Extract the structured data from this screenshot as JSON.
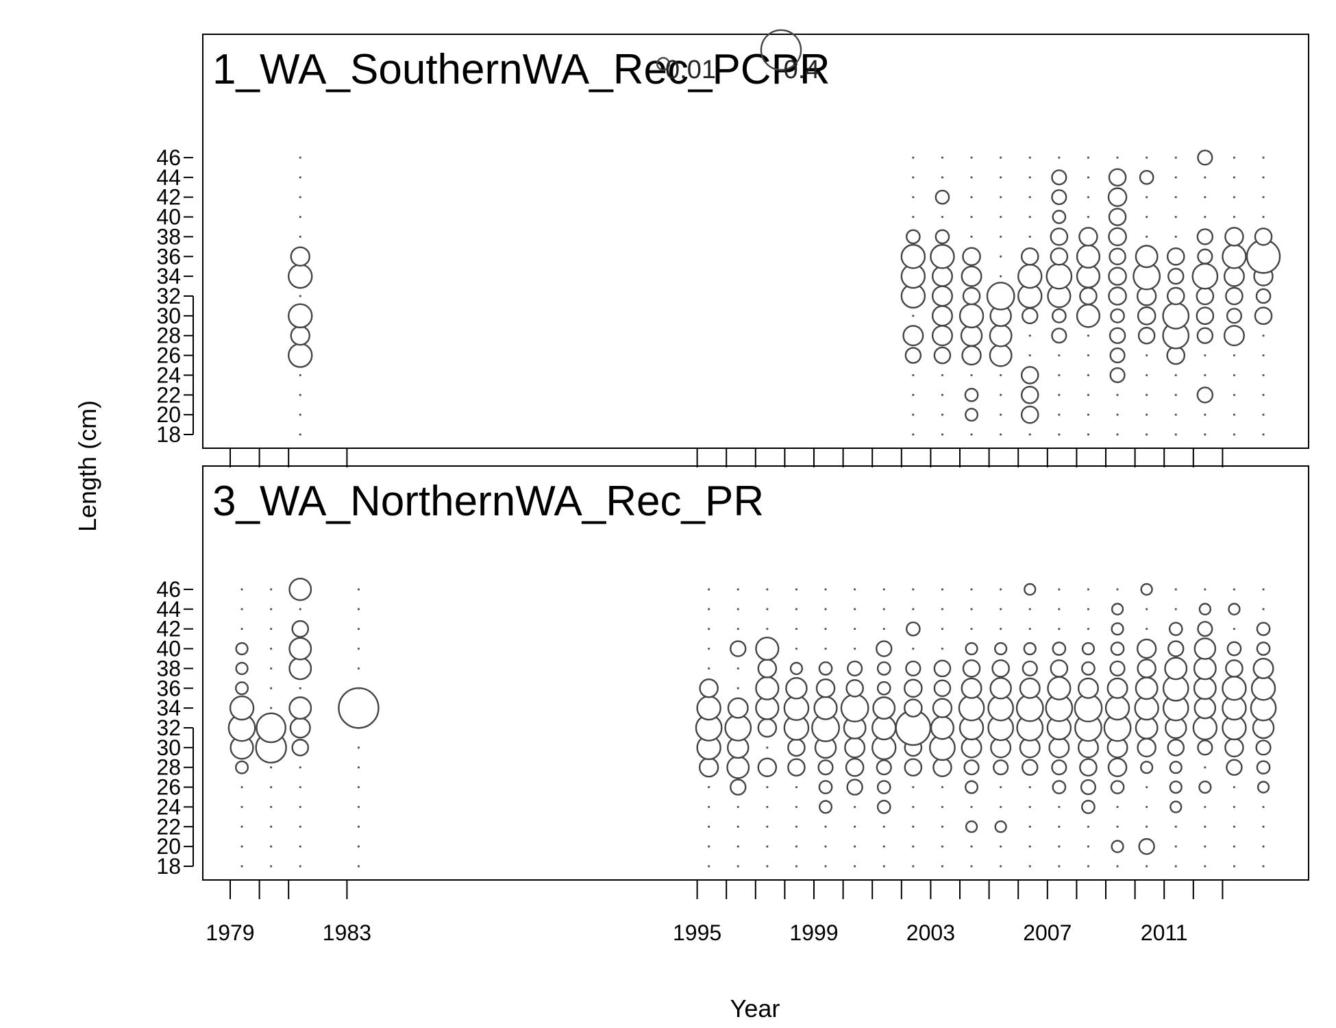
{
  "chart_data": {
    "type": "bubble",
    "xlabel": "Year",
    "ylabel": "Length (cm)",
    "x_tick_labels": [
      1979,
      1983,
      1995,
      1999,
      2003,
      2007,
      2011
    ],
    "y_tick_labels": [
      18,
      20,
      22,
      24,
      26,
      28,
      30,
      32,
      34,
      36,
      38,
      40,
      42,
      44,
      46
    ],
    "x_minor_ticks": [
      1979,
      1980,
      1981,
      1983,
      1995,
      1996,
      1997,
      1998,
      1999,
      2000,
      2001,
      2002,
      2003,
      2004,
      2005,
      2006,
      2007,
      2008,
      2009,
      2010,
      2011,
      2012,
      2013
    ],
    "xlim": [
      1978,
      2015.9
    ],
    "ylim": [
      17,
      58
    ],
    "legend": {
      "values": [
        "0.01",
        "0.4"
      ],
      "sizes": [
        0.01,
        0.4
      ]
    },
    "panels": [
      {
        "title": "1_WA_SouthernWA_Rec_PCPR",
        "years": [
          {
            "year": 1981.4,
            "values": {
              "18": 0,
              "20": 0,
              "22": 0,
              "24": 0,
              "26": 0.1,
              "28": 0.05,
              "30": 0.1,
              "32": 0,
              "34": 0.1,
              "36": 0.05,
              "38": 0,
              "40": 0,
              "42": 0,
              "44": 0,
              "46": 0
            }
          },
          {
            "year": 2002.4,
            "values": {
              "18": 0,
              "20": 0,
              "22": 0,
              "24": 0,
              "26": 0.025,
              "28": 0.06,
              "30": 0,
              "32": 0.1,
              "34": 0.1,
              "36": 0.1,
              "38": 0.015,
              "40": 0,
              "42": 0,
              "44": 0,
              "46": 0
            }
          },
          {
            "year": 2003.4,
            "values": {
              "18": 0,
              "20": 0,
              "22": 0,
              "24": 0,
              "26": 0.03,
              "28": 0.06,
              "30": 0.06,
              "32": 0.06,
              "34": 0.06,
              "36": 0.1,
              "38": 0.015,
              "40": 0,
              "42": 0.015,
              "44": 0,
              "46": 0
            }
          },
          {
            "year": 2004.4,
            "values": {
              "18": 0,
              "20": 0.01,
              "22": 0.012,
              "24": 0,
              "26": 0.05,
              "28": 0.07,
              "30": 0.1,
              "32": 0.035,
              "34": 0.06,
              "36": 0.04,
              "38": 0,
              "40": 0,
              "42": 0,
              "44": 0,
              "46": 0
            }
          },
          {
            "year": 2005.4,
            "values": {
              "18": 0,
              "20": 0,
              "22": 0,
              "24": 0,
              "26": 0.08,
              "28": 0.08,
              "30": 0.07,
              "32": 0.15,
              "34": 0,
              "36": 0,
              "38": 0,
              "40": 0,
              "42": 0,
              "44": 0,
              "46": 0
            }
          },
          {
            "year": 2006.4,
            "values": {
              "18": 0,
              "20": 0.035,
              "22": 0.035,
              "24": 0.035,
              "26": 0,
              "28": 0,
              "30": 0.025,
              "32": 0.1,
              "34": 0.1,
              "36": 0.035,
              "38": 0,
              "40": 0,
              "42": 0,
              "44": 0,
              "46": 0
            }
          },
          {
            "year": 2007.4,
            "values": {
              "18": 0,
              "20": 0,
              "22": 0,
              "24": 0,
              "26": 0,
              "28": 0.02,
              "30": 0.015,
              "32": 0.09,
              "34": 0.12,
              "36": 0.035,
              "38": 0.035,
              "40": 0.012,
              "42": 0.02,
              "44": 0.02,
              "46": 0
            }
          },
          {
            "year": 2008.4,
            "values": {
              "18": 0,
              "20": 0,
              "22": 0,
              "24": 0,
              "26": 0,
              "28": 0,
              "30": 0.09,
              "32": 0.035,
              "34": 0.09,
              "36": 0.09,
              "38": 0.045,
              "40": 0,
              "42": 0,
              "44": 0,
              "46": 0
            }
          },
          {
            "year": 2009.4,
            "values": {
              "18": 0,
              "20": 0,
              "22": 0,
              "24": 0.02,
              "26": 0.02,
              "28": 0.025,
              "30": 0.015,
              "32": 0.04,
              "34": 0.04,
              "36": 0.03,
              "38": 0.04,
              "40": 0.035,
              "42": 0.045,
              "44": 0.035,
              "46": 0
            }
          },
          {
            "year": 2010.4,
            "values": {
              "18": 0,
              "20": 0,
              "22": 0,
              "24": 0,
              "26": 0,
              "28": 0.03,
              "30": 0.04,
              "32": 0.05,
              "34": 0.14,
              "36": 0.08,
              "38": 0,
              "40": 0,
              "42": 0,
              "44": 0.015,
              "46": 0
            }
          },
          {
            "year": 2011.4,
            "values": {
              "18": 0,
              "20": 0,
              "22": 0,
              "24": 0,
              "26": 0.04,
              "28": 0.13,
              "30": 0.13,
              "32": 0.035,
              "34": 0.025,
              "36": 0.035,
              "38": 0,
              "40": 0,
              "42": 0,
              "44": 0,
              "46": 0
            }
          },
          {
            "year": 2012.4,
            "values": {
              "18": 0,
              "20": 0,
              "22": 0.025,
              "24": 0,
              "26": 0,
              "28": 0.025,
              "30": 0.035,
              "32": 0.035,
              "34": 0.12,
              "36": 0.02,
              "38": 0.025,
              "40": 0,
              "42": 0,
              "44": 0,
              "46": 0.02
            }
          },
          {
            "year": 2013.4,
            "values": {
              "18": 0,
              "20": 0,
              "22": 0,
              "24": 0,
              "26": 0,
              "28": 0.06,
              "30": 0.02,
              "32": 0.035,
              "34": 0.06,
              "36": 0.1,
              "38": 0.045,
              "40": 0,
              "42": 0,
              "44": 0,
              "46": 0
            }
          },
          {
            "year": 2014.4,
            "values": {
              "18": 0,
              "20": 0,
              "22": 0,
              "24": 0,
              "26": 0,
              "28": 0,
              "30": 0.035,
              "32": 0.018,
              "34": 0.05,
              "36": 0.25,
              "38": 0.035,
              "40": 0,
              "42": 0,
              "44": 0,
              "46": 0
            }
          }
        ]
      },
      {
        "title": "3_WA_NorthernWA_Rec_PR",
        "years": [
          {
            "year": 1979.4,
            "values": {
              "18": 0,
              "20": 0,
              "22": 0,
              "24": 0,
              "26": 0,
              "28": 0.01,
              "30": 0.09,
              "32": 0.14,
              "34": 0.1,
              "36": 0.01,
              "38": 0.008,
              "40": 0.008,
              "42": 0,
              "44": 0,
              "46": 0
            }
          },
          {
            "year": 1980.4,
            "values": {
              "18": 0,
              "20": 0,
              "22": 0,
              "24": 0,
              "26": 0,
              "28": 0,
              "30": 0.2,
              "32": 0.18,
              "34": 0,
              "36": 0,
              "38": 0,
              "40": 0,
              "42": 0,
              "44": 0,
              "46": 0
            }
          },
          {
            "year": 1981.4,
            "values": {
              "18": 0,
              "20": 0,
              "22": 0,
              "24": 0,
              "26": 0,
              "28": 0,
              "30": 0.03,
              "32": 0.06,
              "34": 0.08,
              "36": 0,
              "38": 0.08,
              "40": 0.08,
              "42": 0.03,
              "44": 0,
              "46": 0.08
            }
          },
          {
            "year": 1983.4,
            "values": {
              "18": 0,
              "20": 0,
              "22": 0,
              "24": 0,
              "26": 0,
              "28": 0,
              "30": 0,
              "32": 0,
              "34": 0.4,
              "36": 0,
              "38": 0,
              "40": 0,
              "42": 0,
              "44": 0,
              "46": 0
            }
          },
          {
            "year": 1995.4,
            "values": {
              "18": 0,
              "20": 0,
              "22": 0,
              "24": 0,
              "26": 0,
              "28": 0.05,
              "30": 0.1,
              "32": 0.13,
              "34": 0.1,
              "36": 0.045,
              "38": 0,
              "40": 0,
              "42": 0,
              "44": 0,
              "46": 0
            }
          },
          {
            "year": 1996.4,
            "values": {
              "18": 0,
              "20": 0,
              "22": 0,
              "24": 0,
              "26": 0.025,
              "28": 0.08,
              "30": 0.07,
              "32": 0.13,
              "34": 0.06,
              "36": 0,
              "38": 0,
              "40": 0.025,
              "42": 0,
              "44": 0,
              "46": 0
            }
          },
          {
            "year": 1997.4,
            "values": {
              "18": 0,
              "20": 0,
              "22": 0,
              "24": 0,
              "26": 0,
              "28": 0.045,
              "30": 0,
              "32": 0.045,
              "34": 0.09,
              "36": 0.09,
              "38": 0.045,
              "40": 0.09,
              "42": 0,
              "44": 0,
              "46": 0
            }
          },
          {
            "year": 1998.4,
            "values": {
              "18": 0,
              "20": 0,
              "22": 0,
              "24": 0,
              "26": 0,
              "28": 0.035,
              "30": 0.035,
              "32": 0.11,
              "34": 0.11,
              "36": 0.07,
              "38": 0.008,
              "40": 0,
              "42": 0,
              "44": 0,
              "46": 0
            }
          },
          {
            "year": 1999.4,
            "values": {
              "18": 0,
              "20": 0,
              "22": 0,
              "24": 0.01,
              "26": 0.012,
              "28": 0.02,
              "30": 0.07,
              "32": 0.15,
              "34": 0.09,
              "36": 0.045,
              "38": 0.012,
              "40": 0,
              "42": 0,
              "44": 0,
              "46": 0
            }
          },
          {
            "year": 2000.4,
            "values": {
              "18": 0,
              "20": 0,
              "22": 0,
              "24": 0,
              "26": 0.025,
              "28": 0.04,
              "30": 0.06,
              "32": 0.08,
              "34": 0.15,
              "36": 0.035,
              "38": 0.02,
              "40": 0,
              "42": 0,
              "44": 0,
              "46": 0
            }
          },
          {
            "year": 2001.4,
            "values": {
              "18": 0,
              "20": 0,
              "22": 0,
              "24": 0.012,
              "26": 0.012,
              "28": 0.02,
              "30": 0.1,
              "32": 0.1,
              "34": 0.08,
              "36": 0.012,
              "38": 0.012,
              "40": 0.025,
              "42": 0,
              "44": 0,
              "46": 0
            }
          },
          {
            "year": 2002.4,
            "values": {
              "18": 0,
              "20": 0,
              "22": 0,
              "24": 0,
              "26": 0,
              "28": 0.035,
              "30": 0.035,
              "32": 0.28,
              "34": 0.04,
              "36": 0.04,
              "38": 0.02,
              "40": 0,
              "42": 0.015,
              "44": 0,
              "46": 0
            }
          },
          {
            "year": 2003.4,
            "values": {
              "18": 0,
              "20": 0,
              "22": 0,
              "24": 0,
              "26": 0,
              "28": 0.045,
              "30": 0.12,
              "32": 0.09,
              "34": 0.05,
              "36": 0.03,
              "38": 0.03,
              "40": 0,
              "42": 0,
              "44": 0,
              "46": 0
            }
          },
          {
            "year": 2004.4,
            "values": {
              "18": 0,
              "20": 0,
              "22": 0.006,
              "24": 0,
              "26": 0.01,
              "28": 0.02,
              "30": 0.06,
              "32": 0.1,
              "34": 0.12,
              "36": 0.06,
              "38": 0.035,
              "40": 0.008,
              "42": 0,
              "44": 0,
              "46": 0
            }
          },
          {
            "year": 2005.4,
            "values": {
              "18": 0,
              "20": 0,
              "22": 0.006,
              "24": 0,
              "26": 0,
              "28": 0.02,
              "30": 0.06,
              "32": 0.12,
              "34": 0.12,
              "36": 0.07,
              "38": 0.035,
              "40": 0.008,
              "42": 0,
              "44": 0,
              "46": 0
            }
          },
          {
            "year": 2006.4,
            "values": {
              "18": 0,
              "20": 0,
              "22": 0,
              "24": 0,
              "26": 0,
              "28": 0.025,
              "30": 0.06,
              "32": 0.13,
              "34": 0.14,
              "36": 0.06,
              "38": 0.02,
              "40": 0.008,
              "42": 0,
              "44": 0,
              "46": 0.006
            }
          },
          {
            "year": 2007.4,
            "values": {
              "18": 0,
              "20": 0,
              "22": 0,
              "24": 0,
              "26": 0.012,
              "28": 0.02,
              "30": 0.06,
              "32": 0.1,
              "34": 0.14,
              "36": 0.09,
              "38": 0.035,
              "40": 0.012,
              "42": 0,
              "44": 0,
              "46": 0
            }
          },
          {
            "year": 2008.4,
            "values": {
              "18": 0,
              "20": 0,
              "22": 0,
              "24": 0.012,
              "26": 0.02,
              "28": 0.035,
              "30": 0.06,
              "32": 0.14,
              "34": 0.15,
              "36": 0.06,
              "38": 0.012,
              "40": 0.008,
              "42": 0,
              "44": 0,
              "46": 0
            }
          },
          {
            "year": 2009.4,
            "values": {
              "18": 0,
              "20": 0.008,
              "22": 0,
              "24": 0,
              "26": 0.012,
              "28": 0.045,
              "30": 0.06,
              "32": 0.14,
              "34": 0.1,
              "36": 0.06,
              "38": 0.02,
              "40": 0.012,
              "42": 0.008,
              "44": 0.006,
              "46": 0
            }
          },
          {
            "year": 2010.4,
            "values": {
              "18": 0,
              "20": 0.025,
              "22": 0,
              "24": 0,
              "26": 0,
              "28": 0.008,
              "30": 0.045,
              "32": 0.08,
              "34": 0.1,
              "36": 0.08,
              "38": 0.045,
              "40": 0.05,
              "42": 0,
              "44": 0,
              "46": 0.006
            }
          },
          {
            "year": 2011.4,
            "values": {
              "18": 0,
              "20": 0,
              "22": 0,
              "24": 0.006,
              "26": 0.008,
              "28": 0.008,
              "30": 0.03,
              "32": 0.07,
              "34": 0.12,
              "36": 0.12,
              "38": 0.08,
              "40": 0.025,
              "42": 0.012,
              "44": 0,
              "46": 0
            }
          },
          {
            "year": 2012.4,
            "values": {
              "18": 0,
              "20": 0,
              "22": 0,
              "24": 0,
              "26": 0.008,
              "28": 0,
              "30": 0.02,
              "32": 0.1,
              "34": 0.07,
              "36": 0.08,
              "38": 0.08,
              "40": 0.07,
              "42": 0.02,
              "44": 0.006,
              "46": 0
            }
          },
          {
            "year": 2013.4,
            "values": {
              "18": 0,
              "20": 0,
              "22": 0,
              "24": 0,
              "26": 0,
              "28": 0.025,
              "30": 0.045,
              "32": 0.1,
              "34": 0.1,
              "36": 0.1,
              "38": 0.035,
              "40": 0.015,
              "42": 0,
              "44": 0.006,
              "46": 0
            }
          },
          {
            "year": 2014.4,
            "values": {
              "18": 0,
              "20": 0,
              "22": 0,
              "24": 0,
              "26": 0.006,
              "28": 0.012,
              "30": 0.02,
              "32": 0.07,
              "34": 0.12,
              "36": 0.1,
              "38": 0.06,
              "40": 0.012,
              "42": 0.012,
              "44": 0,
              "46": 0
            }
          }
        ]
      }
    ]
  }
}
